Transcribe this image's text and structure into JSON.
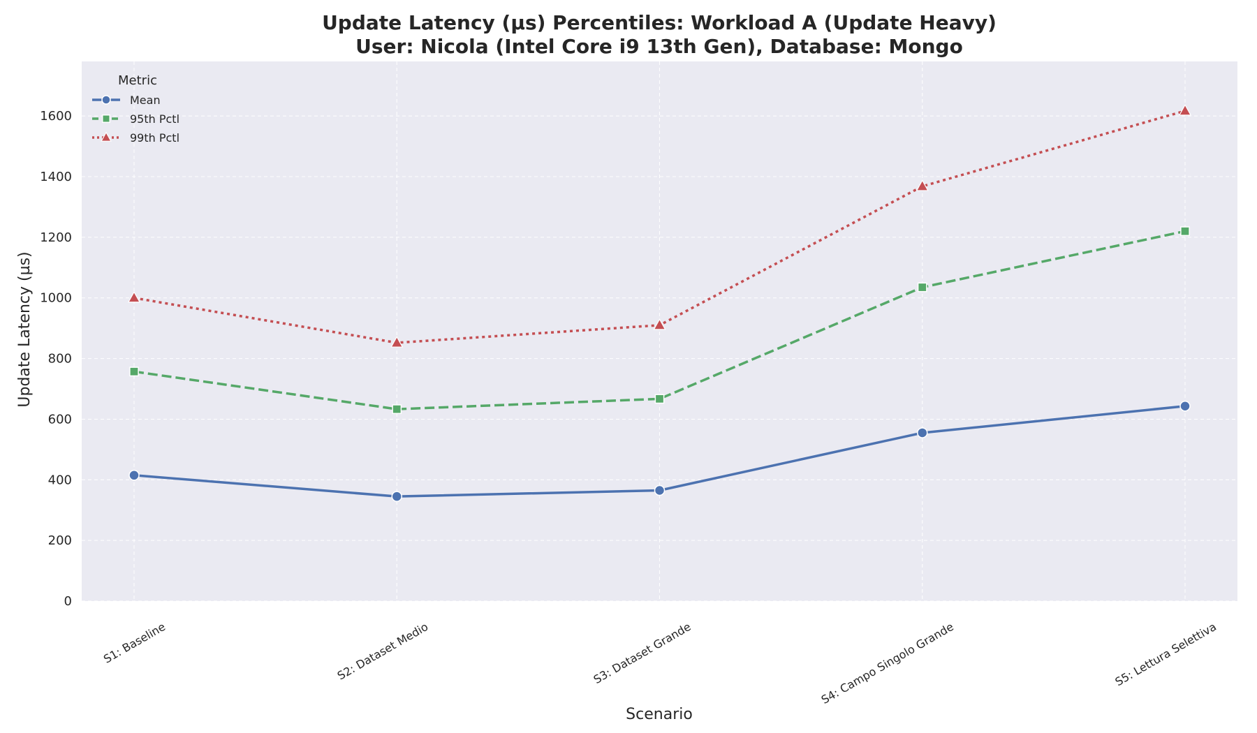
{
  "chart_data": {
    "type": "line",
    "title_line1": "Update Latency (µs) Percentiles: Workload A (Update Heavy)",
    "title_line2": "User: Nicola (Intel Core i9 13th Gen), Database: Mongo",
    "xlabel": "Scenario",
    "ylabel": "Update Latency (µs)",
    "categories": [
      "S1: Baseline",
      "S2: Dataset Medio",
      "S3: Dataset Grande",
      "S4: Campo Singolo Grande",
      "S5: Lettura Selettiva"
    ],
    "ylim": [
      0,
      1780
    ],
    "yticks": [
      0,
      200,
      400,
      600,
      800,
      1000,
      1200,
      1400,
      1600
    ],
    "grid": true,
    "legend": {
      "title": "Metric",
      "placement": "top-left"
    },
    "series": [
      {
        "name": "Mean",
        "values": [
          415,
          345,
          365,
          555,
          643
        ],
        "color": "#4c72b0",
        "marker": "circle",
        "dash": "solid"
      },
      {
        "name": "95th Pctl",
        "values": [
          757,
          633,
          667,
          1035,
          1220
        ],
        "color": "#55a868",
        "marker": "square",
        "dash": "dashed"
      },
      {
        "name": "99th Pctl",
        "values": [
          1000,
          852,
          910,
          1368,
          1617
        ],
        "color": "#c44e52",
        "marker": "triangle",
        "dash": "dotted"
      }
    ],
    "background": "#eaeaf2",
    "grid_color": "#ffffff"
  }
}
